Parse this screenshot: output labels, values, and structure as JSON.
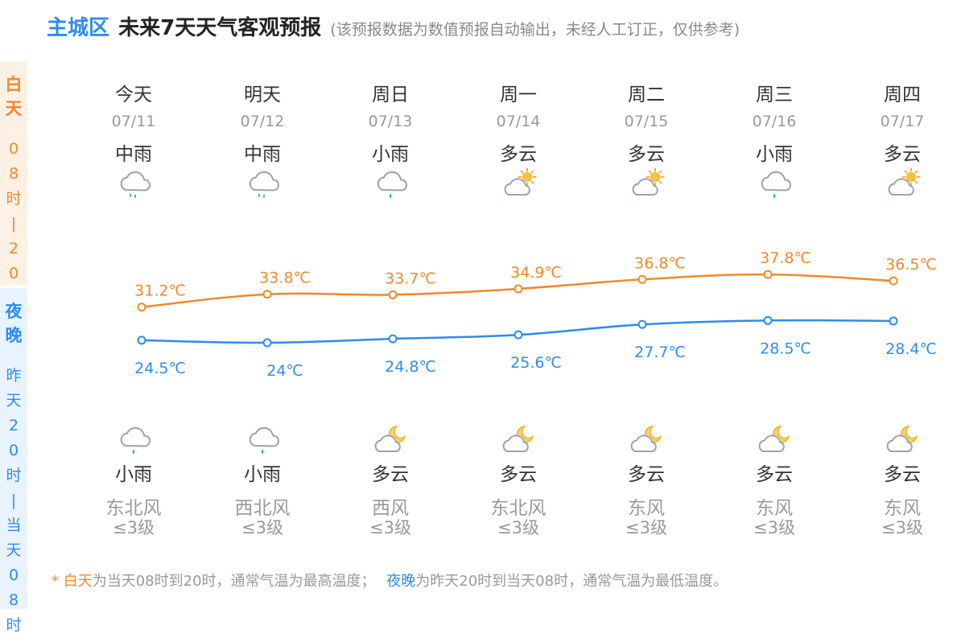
{
  "header": {
    "location": "主城区",
    "title": "未来7天天气客观预报",
    "note": "(该预报数据为数值预报自动输出，未经人工订正，仅供参考)"
  },
  "side": {
    "day_label": "白天",
    "day_sub": "08时|20时",
    "night_label": "夜晚",
    "night_sub": "昨天20时|当天08时"
  },
  "colors": {
    "high": "#f0892c",
    "low": "#2d8cf0",
    "day_bg": "#fdf0e4",
    "night_bg": "#e9f3fd"
  },
  "days": [
    {
      "name": "今天",
      "date": "07/11",
      "day_wx": "中雨",
      "day_icon": "rain-moderate-icon",
      "night_wx": "小雨",
      "night_icon": "rain-light-icon",
      "wind_dir": "东北风",
      "wind_lvl": "≤3级"
    },
    {
      "name": "明天",
      "date": "07/12",
      "day_wx": "中雨",
      "day_icon": "rain-moderate-icon",
      "night_wx": "小雨",
      "night_icon": "rain-light-icon",
      "wind_dir": "西北风",
      "wind_lvl": "≤3级"
    },
    {
      "name": "周日",
      "date": "07/13",
      "day_wx": "小雨",
      "day_icon": "rain-light-icon",
      "night_wx": "多云",
      "night_icon": "cloudy-night-icon",
      "wind_dir": "西风",
      "wind_lvl": "≤3级"
    },
    {
      "name": "周一",
      "date": "07/14",
      "day_wx": "多云",
      "day_icon": "cloudy-day-icon",
      "night_wx": "多云",
      "night_icon": "cloudy-night-icon",
      "wind_dir": "东北风",
      "wind_lvl": "≤3级"
    },
    {
      "name": "周二",
      "date": "07/15",
      "day_wx": "多云",
      "day_icon": "cloudy-day-icon",
      "night_wx": "多云",
      "night_icon": "cloudy-night-icon",
      "wind_dir": "东风",
      "wind_lvl": "≤3级"
    },
    {
      "name": "周三",
      "date": "07/16",
      "day_wx": "小雨",
      "day_icon": "rain-light-icon",
      "night_wx": "多云",
      "night_icon": "cloudy-night-icon",
      "wind_dir": "东风",
      "wind_lvl": "≤3级"
    },
    {
      "name": "周四",
      "date": "07/17",
      "day_wx": "多云",
      "day_icon": "cloudy-day-icon",
      "night_wx": "多云",
      "night_icon": "cloudy-night-icon",
      "wind_dir": "东风",
      "wind_lvl": "≤3级"
    }
  ],
  "chart_data": {
    "type": "line",
    "categories": [
      "07/11",
      "07/12",
      "07/13",
      "07/14",
      "07/15",
      "07/16",
      "07/17"
    ],
    "series": [
      {
        "values": [
          31.2,
          33.8,
          33.7,
          34.9,
          36.8,
          37.8,
          36.5
        ],
        "labels": [
          "31.2℃",
          "33.8℃",
          "33.7℃",
          "34.9℃",
          "36.8℃",
          "37.8℃",
          "36.5℃"
        ],
        "color": "#f0892c"
      },
      {
        "values": [
          24.5,
          24,
          24.8,
          25.6,
          27.7,
          28.5,
          28.4
        ],
        "labels": [
          "24.5℃",
          "24℃",
          "24.8℃",
          "25.6℃",
          "27.7℃",
          "28.5℃",
          "28.4℃"
        ],
        "color": "#2d8cf0"
      }
    ]
  },
  "footer": {
    "star": "* ",
    "day_term": "白天",
    "day_desc": "为当天08时到20时，通常气温为最高温度；",
    "night_term": "夜晚",
    "night_desc": "为昨天20时到当天08时，通常气温为最低温度。"
  }
}
